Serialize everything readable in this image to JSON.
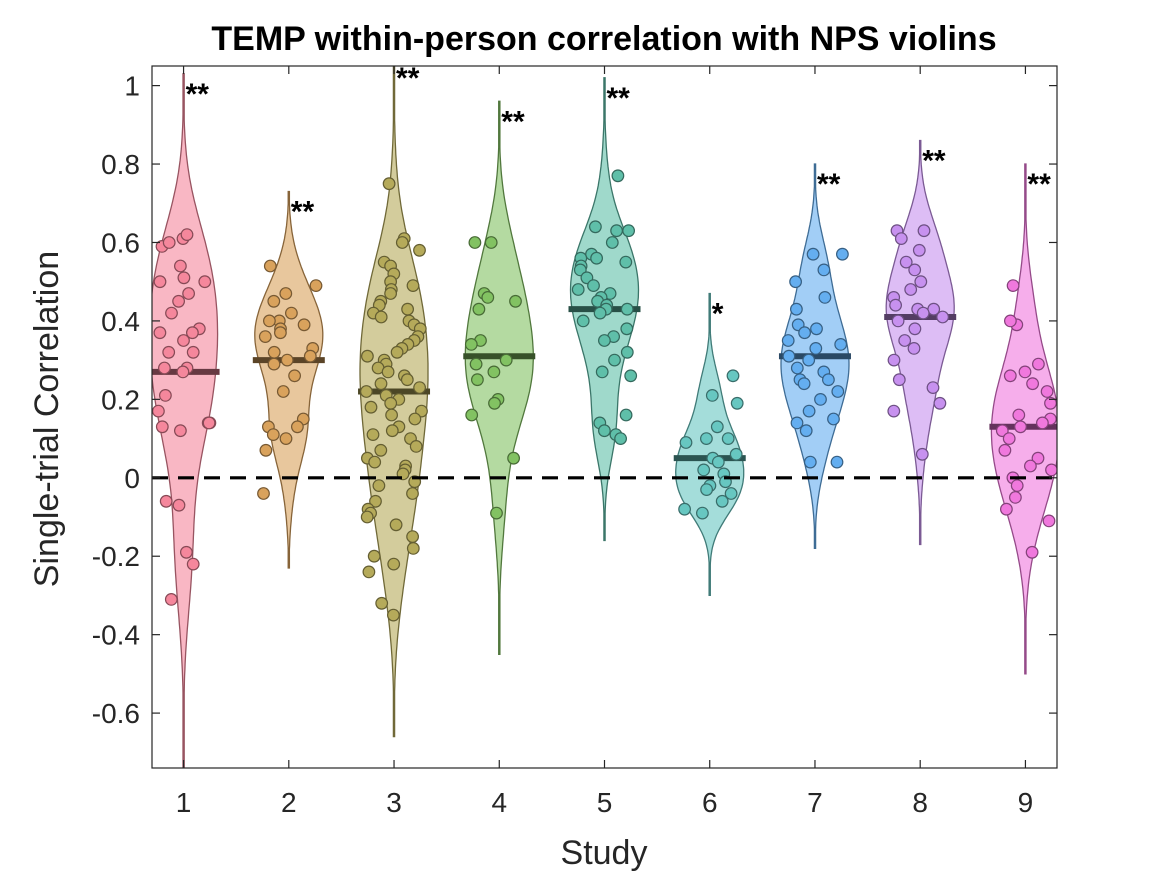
{
  "chart_data": {
    "type": "violin",
    "title": "TEMP within-person correlation with NPS violins",
    "xlabel": "Study",
    "ylabel": "Single-trial Correlation",
    "ylim": [
      -0.74,
      1.05
    ],
    "xlim": [
      0.7,
      9.3
    ],
    "yticks": [
      -0.6,
      -0.4,
      -0.2,
      0,
      0.2,
      0.4,
      0.6,
      0.8,
      1
    ],
    "ytick_labels": [
      "-0.6",
      "-0.4",
      "-0.2",
      "0",
      "0.2",
      "0.4",
      "0.6",
      "0.8",
      "1"
    ],
    "xticks": [
      1,
      2,
      3,
      4,
      5,
      6,
      7,
      8,
      9
    ],
    "xtick_labels": [
      "1",
      "2",
      "3",
      "4",
      "5",
      "6",
      "7",
      "8",
      "9"
    ],
    "reference_line": {
      "y": 0,
      "style": "dashed"
    },
    "studies": [
      {
        "x": 1,
        "color": "#f5879c",
        "mean": 0.27,
        "sig": "**",
        "range": [
          -0.74,
          1.03
        ],
        "points": [
          0.61,
          0.62,
          0.59,
          0.6,
          0.54,
          0.51,
          0.5,
          0.5,
          0.47,
          0.45,
          0.42,
          0.38,
          0.37,
          0.37,
          0.35,
          0.32,
          0.32,
          0.28,
          0.28,
          0.27,
          0.21,
          0.17,
          0.14,
          0.14,
          0.13,
          0.12,
          0.14,
          -0.06,
          -0.07,
          -0.19,
          -0.22,
          -0.31
        ]
      },
      {
        "x": 2,
        "color": "#d9a25c",
        "mean": 0.3,
        "sig": "**",
        "range": [
          -0.23,
          0.73
        ],
        "points": [
          0.54,
          0.49,
          0.47,
          0.45,
          0.42,
          0.4,
          0.4,
          0.39,
          0.38,
          0.37,
          0.36,
          0.33,
          0.32,
          0.31,
          0.3,
          0.29,
          0.26,
          0.22,
          0.15,
          0.13,
          0.13,
          0.11,
          0.1,
          0.07,
          -0.04
        ]
      },
      {
        "x": 3,
        "color": "#b5aa5a",
        "mean": 0.22,
        "sig": "**",
        "range": [
          -0.66,
          1.07
        ],
        "points": [
          0.75,
          0.61,
          0.6,
          0.58,
          0.55,
          0.54,
          0.52,
          0.5,
          0.49,
          0.48,
          0.47,
          0.45,
          0.44,
          0.43,
          0.42,
          0.41,
          0.4,
          0.39,
          0.38,
          0.36,
          0.35,
          0.34,
          0.33,
          0.32,
          0.31,
          0.3,
          0.29,
          0.28,
          0.27,
          0.26,
          0.25,
          0.24,
          0.23,
          0.22,
          0.21,
          0.2,
          0.19,
          0.18,
          0.17,
          0.16,
          0.15,
          0.13,
          0.12,
          0.11,
          0.1,
          0.08,
          0.07,
          0.05,
          0.04,
          0.03,
          0.02,
          0.01,
          -0.01,
          -0.02,
          -0.04,
          -0.06,
          -0.08,
          -0.09,
          -0.1,
          -0.12,
          -0.15,
          -0.18,
          -0.2,
          -0.22,
          -0.24,
          -0.32,
          -0.35
        ]
      },
      {
        "x": 4,
        "color": "#82c262",
        "mean": 0.31,
        "sig": "**",
        "range": [
          -0.45,
          0.96
        ],
        "points": [
          0.6,
          0.6,
          0.47,
          0.46,
          0.45,
          0.43,
          0.35,
          0.34,
          0.3,
          0.29,
          0.27,
          0.25,
          0.2,
          0.19,
          0.16,
          0.05,
          -0.09
        ]
      },
      {
        "x": 5,
        "color": "#5fbfa9",
        "mean": 0.43,
        "sig": "**",
        "range": [
          -0.16,
          1.02
        ],
        "points": [
          0.77,
          0.64,
          0.63,
          0.63,
          0.6,
          0.57,
          0.56,
          0.56,
          0.55,
          0.54,
          0.53,
          0.51,
          0.49,
          0.48,
          0.47,
          0.46,
          0.45,
          0.44,
          0.43,
          0.43,
          0.42,
          0.4,
          0.38,
          0.36,
          0.35,
          0.32,
          0.3,
          0.27,
          0.26,
          0.16,
          0.14,
          0.12,
          0.11,
          0.1
        ]
      },
      {
        "x": 6,
        "color": "#67c7c1",
        "mean": 0.05,
        "sig": "*",
        "range": [
          -0.3,
          0.47
        ],
        "points": [
          0.26,
          0.21,
          0.19,
          0.13,
          0.1,
          0.1,
          0.09,
          0.06,
          0.05,
          0.04,
          0.02,
          0.01,
          -0.01,
          -0.02,
          -0.03,
          -0.04,
          -0.06,
          -0.08,
          -0.09
        ]
      },
      {
        "x": 7,
        "color": "#64aef0",
        "mean": 0.31,
        "sig": "**",
        "range": [
          -0.18,
          0.8
        ],
        "points": [
          0.57,
          0.57,
          0.53,
          0.5,
          0.46,
          0.43,
          0.39,
          0.38,
          0.37,
          0.35,
          0.34,
          0.33,
          0.31,
          0.3,
          0.28,
          0.27,
          0.25,
          0.25,
          0.24,
          0.22,
          0.2,
          0.17,
          0.15,
          0.14,
          0.12,
          0.04,
          0.04
        ]
      },
      {
        "x": 8,
        "color": "#c791ef",
        "mean": 0.41,
        "sig": "**",
        "range": [
          -0.17,
          0.86
        ],
        "points": [
          0.63,
          0.63,
          0.61,
          0.58,
          0.55,
          0.53,
          0.5,
          0.48,
          0.46,
          0.44,
          0.43,
          0.43,
          0.42,
          0.41,
          0.4,
          0.38,
          0.35,
          0.33,
          0.3,
          0.25,
          0.23,
          0.19,
          0.17,
          0.06
        ]
      },
      {
        "x": 9,
        "color": "#f078dd",
        "mean": 0.13,
        "sig": "**",
        "range": [
          -0.5,
          0.8
        ],
        "points": [
          0.49,
          0.39,
          0.4,
          0.29,
          0.27,
          0.26,
          0.24,
          0.22,
          0.19,
          0.16,
          0.15,
          0.14,
          0.13,
          0.12,
          0.1,
          0.07,
          0.05,
          0.03,
          0.02,
          0.0,
          -0.02,
          -0.05,
          -0.08,
          -0.11,
          -0.19
        ]
      }
    ]
  }
}
